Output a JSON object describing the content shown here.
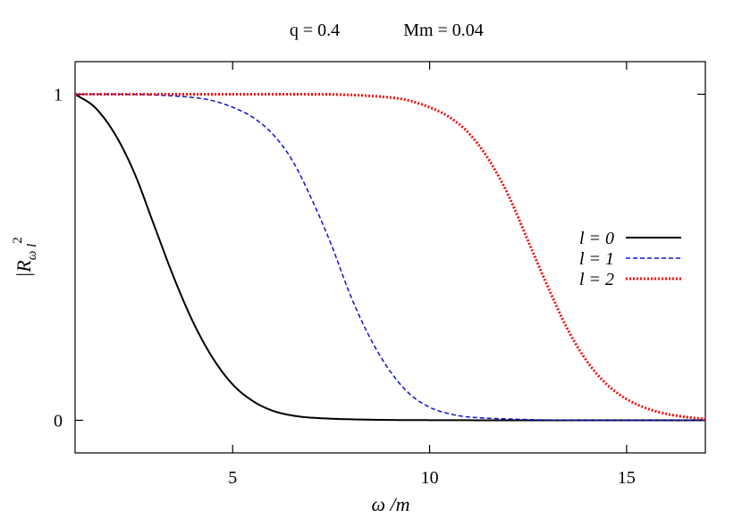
{
  "chart_data": {
    "type": "line",
    "title_left": "q = 0.4",
    "title_right": "Mm = 0.04",
    "xlabel": "ω /m",
    "ylabel": "|R",
    "ylabel_sub": "ω l",
    "ylabel_sup": "2",
    "xlim": [
      1,
      17
    ],
    "ylim": [
      -0.1,
      1.1
    ],
    "xticks": [
      5,
      10,
      15
    ],
    "xtick_labels": [
      "5",
      "10",
      "15"
    ],
    "yticks": [
      0,
      1
    ],
    "ytick_labels": [
      "0",
      "1"
    ],
    "grid": false,
    "legend_position": "right",
    "series": [
      {
        "name": "l = 0",
        "color": "#000000",
        "style": "solid",
        "x": [
          1,
          1.5,
          2,
          2.5,
          3,
          3.5,
          4,
          4.5,
          5,
          5.5,
          6,
          6.5,
          7,
          8,
          9,
          10,
          12,
          14,
          17
        ],
        "y": [
          1.0,
          0.96,
          0.88,
          0.76,
          0.6,
          0.44,
          0.3,
          0.19,
          0.11,
          0.06,
          0.03,
          0.015,
          0.008,
          0.003,
          0.001,
          0.0005,
          0,
          0,
          0
        ]
      },
      {
        "name": "l = 1",
        "color": "#1010d0",
        "style": "dashed",
        "x": [
          1,
          2,
          3,
          4,
          4.5,
          5,
          5.5,
          6,
          6.5,
          7,
          7.5,
          8,
          8.5,
          9,
          9.5,
          10,
          10.5,
          11,
          12,
          13,
          14,
          17
        ],
        "y": [
          1.0,
          1.0,
          0.998,
          0.99,
          0.98,
          0.96,
          0.93,
          0.88,
          0.8,
          0.68,
          0.54,
          0.38,
          0.25,
          0.15,
          0.08,
          0.04,
          0.02,
          0.01,
          0.004,
          0.001,
          0,
          0
        ]
      },
      {
        "name": "l = 2",
        "color": "#ee1111",
        "style": "dotted",
        "x": [
          1,
          3,
          5,
          7,
          8,
          9,
          9.5,
          10,
          10.5,
          11,
          11.5,
          12,
          12.5,
          13,
          13.5,
          14,
          14.5,
          15,
          15.5,
          16,
          16.5,
          17
        ],
        "y": [
          1.0,
          1.0,
          1.0,
          1.0,
          0.998,
          0.99,
          0.98,
          0.96,
          0.93,
          0.88,
          0.8,
          0.69,
          0.55,
          0.41,
          0.28,
          0.18,
          0.11,
          0.065,
          0.037,
          0.02,
          0.01,
          0.004
        ]
      }
    ]
  }
}
